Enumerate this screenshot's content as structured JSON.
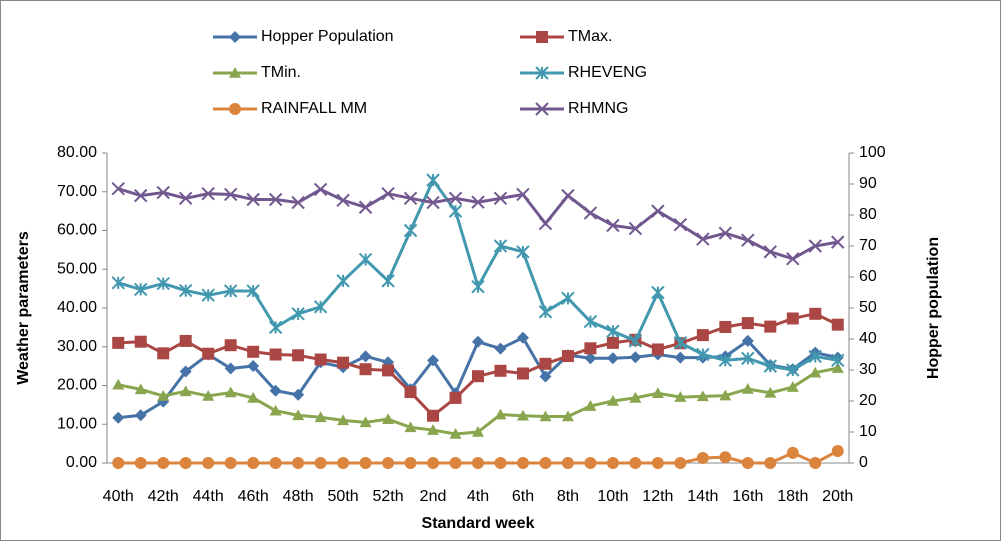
{
  "chart_data": {
    "type": "line",
    "x_label": "Standard week",
    "y_label": "Weather parameters",
    "y2_label": "Hopper population",
    "categories": [
      "40th",
      null,
      "42th",
      null,
      "44th",
      null,
      "46th",
      null,
      "48th",
      null,
      "50th",
      null,
      "52th",
      null,
      "2nd",
      null,
      "4th",
      null,
      "6th",
      null,
      "8th",
      null,
      "10th",
      null,
      "12th",
      null,
      "14th",
      null,
      "16th",
      null,
      "18th",
      null,
      "20th"
    ],
    "series": [
      {
        "name": "Hopper Population",
        "color": "#4572a7",
        "marker": "diamond",
        "axis": "y2",
        "values": [
          14.6,
          15.4,
          19.8,
          29.5,
          35,
          30.5,
          31.3,
          23.3,
          22,
          32.5,
          30.9,
          34.4,
          32.5,
          23.8,
          33.1,
          22.5,
          39.1,
          36.9,
          40.4,
          27.9,
          34.8,
          33.8,
          33.8,
          34.1,
          35,
          34,
          34,
          34.4,
          39.4,
          31.6,
          30.3,
          35.6,
          34
        ]
      },
      {
        "name": "TMax.",
        "color": "#aa4643",
        "marker": "square",
        "values": [
          31,
          31.3,
          28.3,
          31.5,
          28.2,
          30.4,
          28.7,
          28,
          27.8,
          26.7,
          25.9,
          24.2,
          23.9,
          18.3,
          12.2,
          16.8,
          22.4,
          23.8,
          23.1,
          25.6,
          27.6,
          29.6,
          31,
          31.8,
          29.3,
          30.9,
          33,
          35.1,
          36.1,
          35.2,
          37.3,
          38.5,
          35.7
        ]
      },
      {
        "name": "TMin.",
        "color": "#89a54e",
        "marker": "triangle",
        "values": [
          20.2,
          19,
          17.3,
          18.5,
          17.3,
          18.2,
          16.8,
          13.5,
          12.3,
          11.8,
          11,
          10.5,
          11.3,
          9.2,
          8.5,
          7.5,
          8,
          12.5,
          12.2,
          12,
          12,
          14.7,
          16,
          16.8,
          18,
          17,
          17.2,
          17.4,
          19.1,
          18.1,
          19.6,
          23.3,
          24.5
        ]
      },
      {
        "name": "RHEVENG",
        "color": "#4198af",
        "marker": "star",
        "values": [
          46.5,
          44.8,
          46.3,
          44.5,
          43.3,
          44.4,
          44.4,
          35,
          38.5,
          40.3,
          47,
          52.5,
          47,
          60,
          73,
          65,
          45.5,
          56,
          54.5,
          39,
          42.5,
          36.5,
          34,
          31.5,
          44,
          31,
          28,
          26.5,
          27,
          25,
          24,
          27.5,
          26.5
        ]
      },
      {
        "name": "RAINFALL MM",
        "color": "#db843d",
        "marker": "circle",
        "values": [
          0,
          0,
          0,
          0,
          0,
          0,
          0,
          0,
          0,
          0,
          0,
          0,
          0,
          0,
          0,
          0,
          0,
          0,
          0,
          0,
          0,
          0,
          0,
          0,
          0,
          0,
          1.3,
          1.5,
          0,
          0,
          2.6,
          0,
          3.1
        ]
      },
      {
        "name": "RHMNG",
        "color": "#71588f",
        "marker": "x",
        "values": [
          70.8,
          69,
          69.8,
          68.3,
          69.5,
          69.3,
          68,
          68,
          67.2,
          70.6,
          67.8,
          66,
          69.5,
          68.3,
          67.2,
          68.3,
          67.3,
          68.3,
          69.3,
          61.8,
          69,
          64.5,
          61.3,
          60.5,
          65,
          61.5,
          57.8,
          59.3,
          57.5,
          54.5,
          52.7,
          56,
          57
        ]
      }
    ],
    "ylim": [
      0,
      80
    ],
    "yticks": [
      {
        "value": 0,
        "label": "0.00"
      },
      {
        "value": 10,
        "label": "10.00"
      },
      {
        "value": 20,
        "label": "20.00"
      },
      {
        "value": 30,
        "label": "30.00"
      },
      {
        "value": 40,
        "label": "40.00"
      },
      {
        "value": 50,
        "label": "50.00"
      },
      {
        "value": 60,
        "label": "60.00"
      },
      {
        "value": 70,
        "label": "70.00"
      },
      {
        "value": 80,
        "label": "80.00"
      }
    ],
    "y2lim": [
      0,
      100
    ],
    "y2ticks": [
      0,
      10,
      20,
      30,
      40,
      50,
      60,
      70,
      80,
      90,
      100
    ],
    "grid": false
  }
}
